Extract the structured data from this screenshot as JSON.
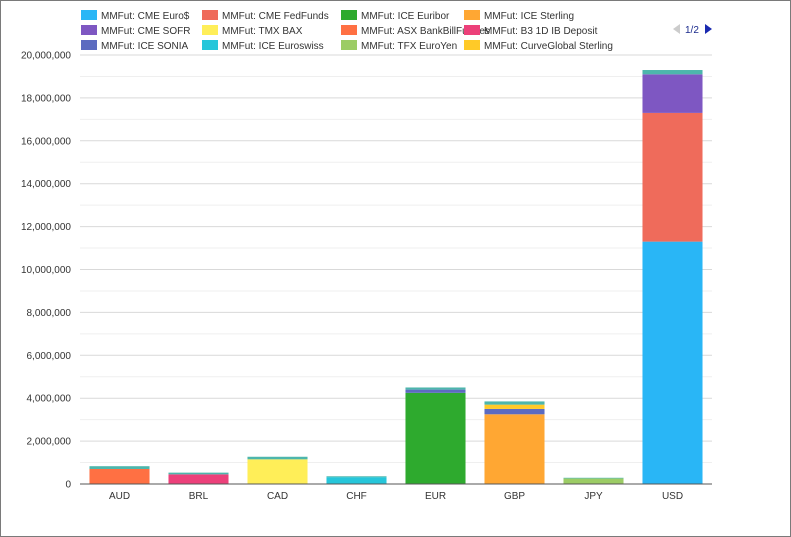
{
  "chart_data": {
    "type": "bar",
    "stacked": true,
    "title": "",
    "xlabel": "",
    "ylabel": "",
    "ylim": [
      0,
      20000000
    ],
    "yticks": [
      0,
      2000000,
      4000000,
      6000000,
      8000000,
      10000000,
      12000000,
      14000000,
      16000000,
      18000000,
      20000000
    ],
    "ytick_labels": [
      "0",
      "2,000,000",
      "4,000,000",
      "6,000,000",
      "8,000,000",
      "10,000,000",
      "12,000,000",
      "14,000,000",
      "16,000,000",
      "18,000,000",
      "20,000,000"
    ],
    "grid": true,
    "legend_position": "top",
    "categories": [
      "AUD",
      "BRL",
      "CAD",
      "CHF",
      "EUR",
      "GBP",
      "JPY",
      "USD"
    ],
    "series": [
      {
        "name": "MMFut: CME Euro$",
        "color": "#29b6f6",
        "values": [
          0,
          0,
          0,
          0,
          0,
          0,
          0,
          11300000
        ]
      },
      {
        "name": "MMFut: CME FedFunds",
        "color": "#ef6b5b",
        "values": [
          0,
          0,
          0,
          0,
          0,
          0,
          0,
          6000000
        ]
      },
      {
        "name": "MMFut: ICE Euribor",
        "color": "#2eaa2e",
        "values": [
          0,
          0,
          0,
          0,
          4250000,
          0,
          0,
          0
        ]
      },
      {
        "name": "MMFut: ICE Sterling",
        "color": "#ffa733",
        "values": [
          0,
          0,
          0,
          0,
          0,
          3250000,
          0,
          0
        ]
      },
      {
        "name": "MMFut: CME SOFR",
        "color": "#7e57c2",
        "values": [
          0,
          0,
          0,
          0,
          0,
          0,
          0,
          1800000
        ]
      },
      {
        "name": "MMFut: TMX BAX",
        "color": "#ffee58",
        "values": [
          0,
          0,
          1150000,
          0,
          0,
          0,
          0,
          0
        ]
      },
      {
        "name": "MMFut: ASX BankBillFutures",
        "color": "#ff7043",
        "values": [
          700000,
          0,
          0,
          0,
          0,
          0,
          0,
          0
        ]
      },
      {
        "name": "MMFut: B3 1D IB Deposit",
        "color": "#ec407a",
        "values": [
          0,
          450000,
          0,
          0,
          0,
          0,
          0,
          0
        ]
      },
      {
        "name": "MMFut: ICE SONIA",
        "color": "#5c6bc0",
        "values": [
          0,
          0,
          0,
          0,
          150000,
          250000,
          0,
          0
        ]
      },
      {
        "name": "MMFut: ICE Euroswiss",
        "color": "#26c6da",
        "values": [
          0,
          0,
          0,
          320000,
          0,
          0,
          0,
          0
        ]
      },
      {
        "name": "MMFut: TFX EuroYen",
        "color": "#9ccc65",
        "values": [
          0,
          0,
          0,
          0,
          0,
          0,
          260000,
          0
        ]
      },
      {
        "name": "MMFut: CurveGlobal Sterling",
        "color": "#ffca28",
        "values": [
          0,
          0,
          0,
          0,
          0,
          200000,
          0,
          0
        ]
      },
      {
        "name": "",
        "color": "#4db6ac",
        "values": [
          130000,
          80000,
          120000,
          40000,
          100000,
          150000,
          30000,
          200000
        ]
      }
    ]
  },
  "legend_pager": {
    "label": "1/2",
    "prev_icon": "triangle-left-icon",
    "next_icon": "triangle-right-icon"
  }
}
